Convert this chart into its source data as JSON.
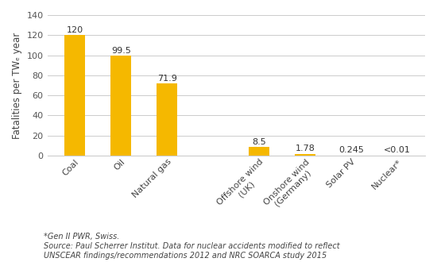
{
  "categories": [
    "Coal",
    "Oil",
    "Natural gas",
    "",
    "Offshore wind\n(UK)",
    "Onshore wind\n(Germany)",
    "Solar PV",
    "Nuclear*"
  ],
  "values": [
    120,
    99.5,
    71.9,
    0,
    8.5,
    1.78,
    0.245,
    0.01
  ],
  "labels": [
    "120",
    "99.5",
    "71.9",
    "",
    "8.5",
    "1.78",
    "0.245",
    "<0.01"
  ],
  "bar_color": "#F5B800",
  "bar_color_empty": "none",
  "ylabel": "Fatalities per TWₑ year",
  "ylim": [
    0,
    140
  ],
  "yticks": [
    0,
    20,
    40,
    60,
    80,
    100,
    120,
    140
  ],
  "footnote_line1": "*Gen II PWR, Swiss.",
  "footnote_line2": "Source: Paul Scherrer Institut. Data for nuclear accidents modified to reflect",
  "footnote_line3": "UNSCEAR findings/recommendations 2012 and NRC SOARCA study 2015",
  "label_fontsize": 8,
  "tick_fontsize": 8,
  "ylabel_fontsize": 8.5,
  "footnote_fontsize": 7,
  "background_color": "#ffffff"
}
